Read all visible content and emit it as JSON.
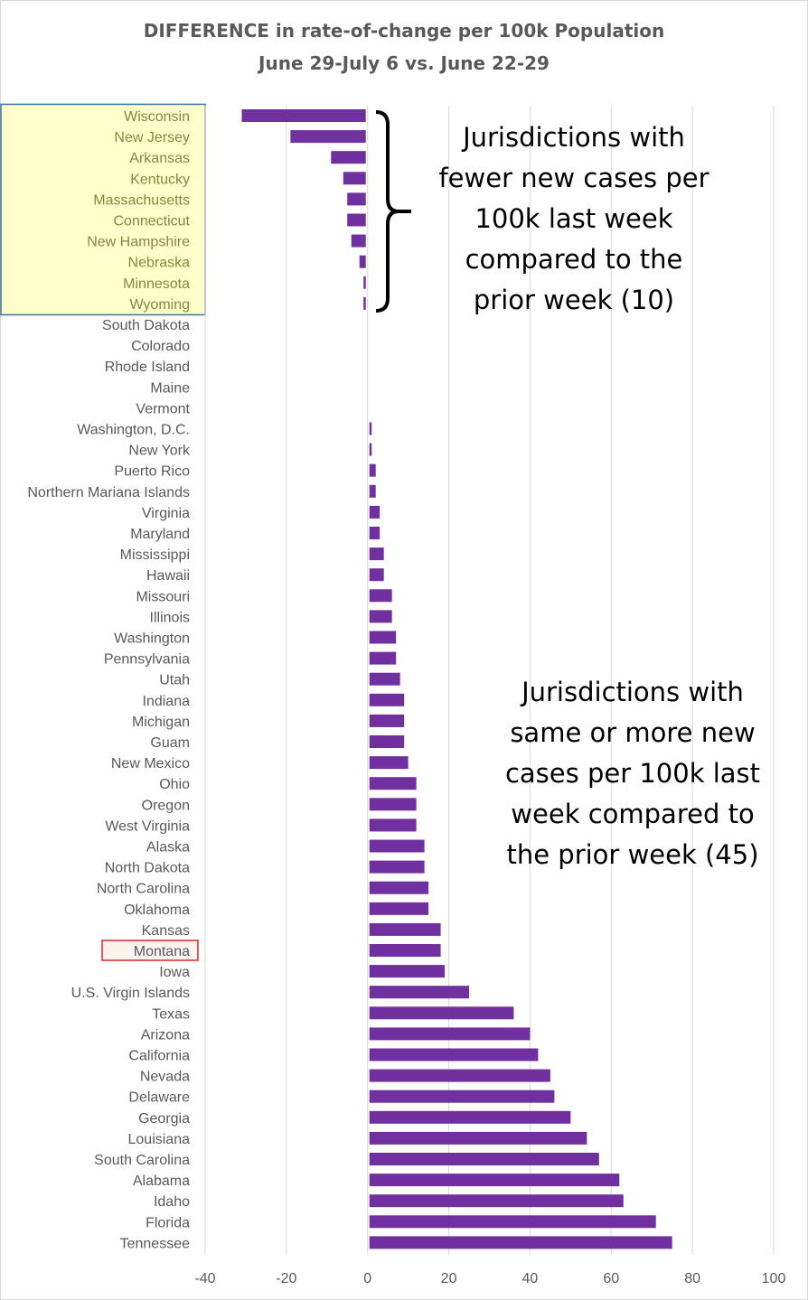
{
  "chart_data": {
    "type": "bar",
    "orientation": "horizontal",
    "title": "DIFFERENCE  in rate-of-change per 100k Population",
    "subtitle": "June 29-July 6 vs. June 22-29",
    "xlim": [
      -40,
      100
    ],
    "xticks": [
      -40,
      -20,
      0,
      20,
      40,
      60,
      80,
      100
    ],
    "grid": true,
    "bar_color": "#7030a0",
    "categories": [
      "Wisconsin",
      "New Jersey",
      "Arkansas",
      "Kentucky",
      "Massachusetts",
      "Connecticut",
      "New Hampshire",
      "Nebraska",
      "Minnesota",
      "Wyoming",
      "South Dakota",
      "Colorado",
      "Rhode Island",
      "Maine",
      "Vermont",
      "Washington, D.C.",
      "New York",
      "Puerto Rico",
      "Northern Mariana Islands",
      "Virginia",
      "Maryland",
      "Mississippi",
      "Hawaii",
      "Missouri",
      "Illinois",
      "Washington",
      "Pennsylvania",
      "Utah",
      "Indiana",
      "Michigan",
      "Guam",
      "New Mexico",
      "Ohio",
      "Oregon",
      "West Virginia",
      "Alaska",
      "North Dakota",
      "North Carolina",
      "Oklahoma",
      "Kansas",
      "Montana",
      "Iowa",
      "U.S. Virgin Islands",
      "Texas",
      "Arizona",
      "California",
      "Nevada",
      "Delaware",
      "Georgia",
      "Louisiana",
      "South Carolina",
      "Alabama",
      "Idaho",
      "Florida",
      "Tennessee"
    ],
    "values": [
      -31,
      -19,
      -9,
      -6,
      -5,
      -5,
      -4,
      -2,
      -1,
      -1,
      0,
      0,
      0,
      0,
      0,
      1,
      1,
      2,
      2,
      3,
      3,
      4,
      4,
      6,
      6,
      7,
      7,
      8,
      9,
      9,
      9,
      10,
      12,
      12,
      12,
      14,
      14,
      15,
      15,
      18,
      18,
      19,
      25,
      36,
      40,
      42,
      45,
      46,
      50,
      54,
      57,
      62,
      63,
      71,
      75
    ],
    "highlight_group": {
      "categories": [
        "Wisconsin",
        "New Jersey",
        "Arkansas",
        "Kentucky",
        "Massachusetts",
        "Connecticut",
        "New Hampshire",
        "Nebraska",
        "Minnesota",
        "Wyoming"
      ],
      "fill": "#ffffcc",
      "border": "#41719c",
      "label_color": "#8b8540"
    },
    "highlight_single": {
      "category": "Montana",
      "border": "#d62728",
      "fill": "#fdf3ee"
    },
    "annotations": [
      "Jurisdictions with\nfewer new cases per\n100k last week\ncompared to the\nprior week (10)",
      "Jurisdictions with\nsame or more new\ncases per 100k last\nweek compared to\nthe prior week (45)"
    ],
    "label_color": "#595959",
    "grid_color": "#d9d9d9"
  }
}
